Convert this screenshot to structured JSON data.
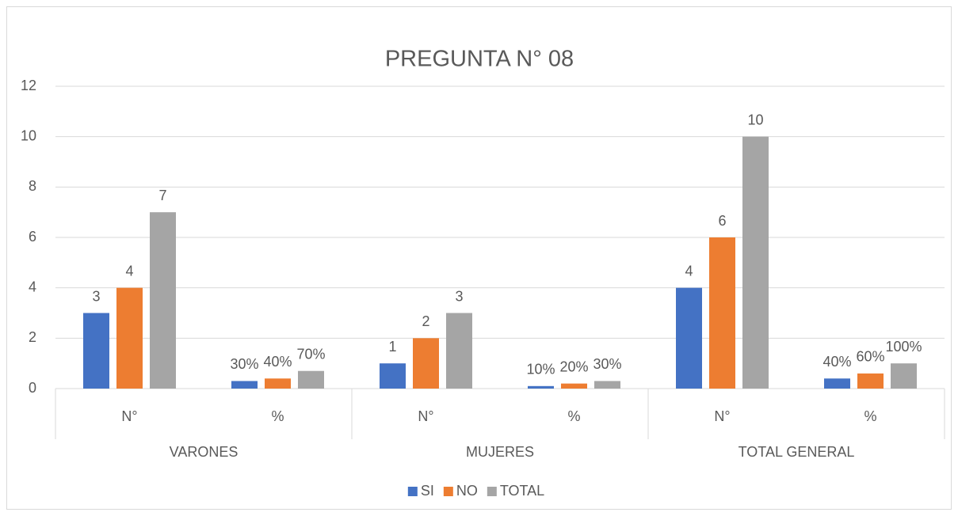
{
  "chart_data": {
    "type": "bar",
    "title": "PREGUNTA N° 08",
    "categories": [
      "N°",
      "%",
      "N°",
      "%",
      "N°",
      "%"
    ],
    "category_groups": [
      "VARONES",
      "MUJERES",
      "TOTAL GENERAL"
    ],
    "series": [
      {
        "name": "SI",
        "color": "#4472c4",
        "values": [
          3,
          0.3,
          1,
          0.1,
          4,
          0.4
        ],
        "value_labels": [
          "3",
          "30%",
          "1",
          "10%",
          "4",
          "40%"
        ]
      },
      {
        "name": "NO",
        "color": "#ed7d31",
        "values": [
          4,
          0.4,
          2,
          0.2,
          6,
          0.6
        ],
        "value_labels": [
          "4",
          "40%",
          "2",
          "20%",
          "6",
          "60%"
        ]
      },
      {
        "name": "TOTAL",
        "color": "#a5a5a5",
        "values": [
          7,
          0.7,
          3,
          0.3,
          10,
          1
        ],
        "value_labels": [
          "7",
          "70%",
          "3",
          "30%",
          "10",
          "100%"
        ]
      }
    ],
    "ylim": [
      0,
      12
    ],
    "yticks": [
      0,
      2,
      4,
      6,
      8,
      10,
      12
    ],
    "grid": true,
    "legend": "bottom"
  }
}
